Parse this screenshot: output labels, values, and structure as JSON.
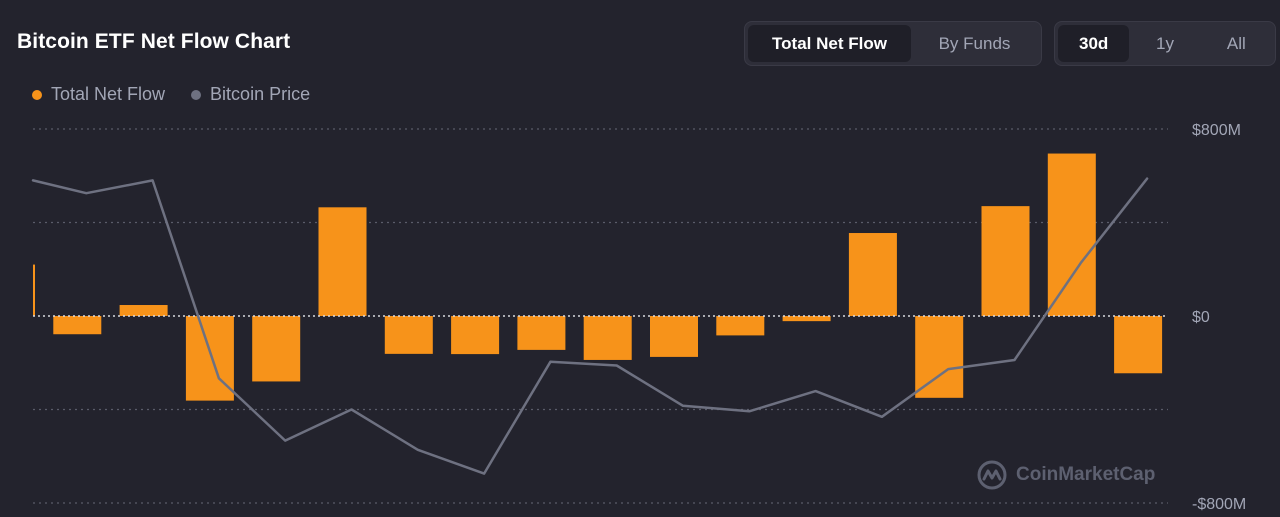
{
  "header": {
    "title": "Bitcoin ETF Net Flow Chart"
  },
  "view_toggle": {
    "options": [
      "Total Net Flow",
      "By Funds"
    ],
    "selected": "Total Net Flow"
  },
  "range_toggle": {
    "options": [
      "30d",
      "1y",
      "All"
    ],
    "selected": "30d"
  },
  "legend": {
    "items": [
      {
        "label": "Total Net Flow",
        "color": "#f7931a"
      },
      {
        "label": "Bitcoin Price",
        "color": "#6e7181"
      }
    ]
  },
  "watermark": {
    "text": "CoinMarketCap"
  },
  "chart_data": {
    "type": "bar",
    "title": "Bitcoin ETF Net Flow Chart",
    "xlabel": "",
    "ylabel": "",
    "ylim": [
      -800,
      800
    ],
    "y_ticks": [
      800,
      0,
      -800
    ],
    "y_tick_labels": [
      "$800M",
      "$0",
      "-$800M"
    ],
    "grid": true,
    "legend_position": "top-left",
    "series": [
      {
        "name": "Total Net Flow",
        "kind": "bar",
        "color": "#f7931a",
        "unit": "USD millions",
        "values": [
          220,
          -78,
          47,
          -362,
          -280,
          465,
          -162,
          -163,
          -145,
          -188,
          -175,
          -83,
          -22,
          355,
          -350,
          470,
          695,
          -245
        ]
      },
      {
        "name": "Bitcoin Price",
        "kind": "line",
        "color": "#6e7181",
        "values": [
          0.74,
          0.67,
          0.74,
          -0.34,
          -0.68,
          -0.51,
          -0.73,
          -0.86,
          -0.25,
          -0.27,
          -0.49,
          -0.52,
          -0.41,
          -0.55,
          -0.29,
          -0.24,
          0.29,
          0.75
        ]
      }
    ]
  }
}
